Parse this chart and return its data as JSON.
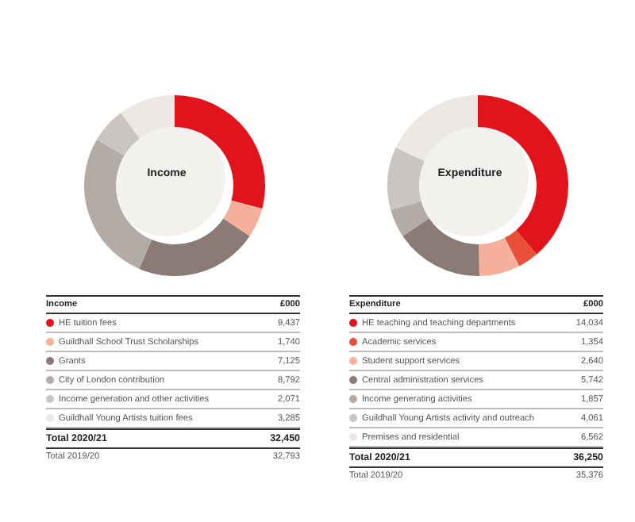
{
  "chart_data": [
    {
      "type": "donut",
      "title": "Income",
      "categories": [
        "HE tuition fees",
        "Guildhall School Trust Scholarships",
        "Grants",
        "City of London contribution",
        "Income generation and other activities",
        "Guildhall Young Artists tuition fees"
      ],
      "values": [
        9437,
        1740,
        7125,
        8792,
        2071,
        3285
      ],
      "value_labels": [
        "9,437",
        "1,740",
        "7,125",
        "8,792",
        "2,071",
        "3,285"
      ],
      "colors": [
        "#e3131b",
        "#f4b09a",
        "#8a7b76",
        "#b3aba6",
        "#c9c5c2",
        "#ece9e4"
      ],
      "legend_title": "£000",
      "legend": "bottom",
      "annotations": [
        "Total 2020/21",
        "32,450",
        "Total 2019/20",
        "32,793"
      ]
    },
    {
      "type": "donut",
      "title": "Expenditure",
      "categories": [
        "HE teaching and teaching departments",
        "Academic services",
        "Student support services",
        "Central administration services",
        "Income generating activities",
        "Guildhall Young Artists activity and outreach",
        "Premises and residential"
      ],
      "values": [
        14034,
        1354,
        2640,
        5742,
        1857,
        4061,
        6562
      ],
      "value_labels": [
        "14,034",
        "1,354",
        "2,640",
        "5,742",
        "1,857",
        "4,061",
        "6,562"
      ],
      "colors": [
        "#e3131b",
        "#e8503a",
        "#f4b09a",
        "#8a7b76",
        "#b3aba6",
        "#c9c5c2",
        "#ece9e4"
      ],
      "legend_title": "£000",
      "legend": "bottom",
      "annotations": [
        "Total 2020/21",
        "36,250",
        "Total 2019/20",
        "35,376"
      ]
    }
  ]
}
